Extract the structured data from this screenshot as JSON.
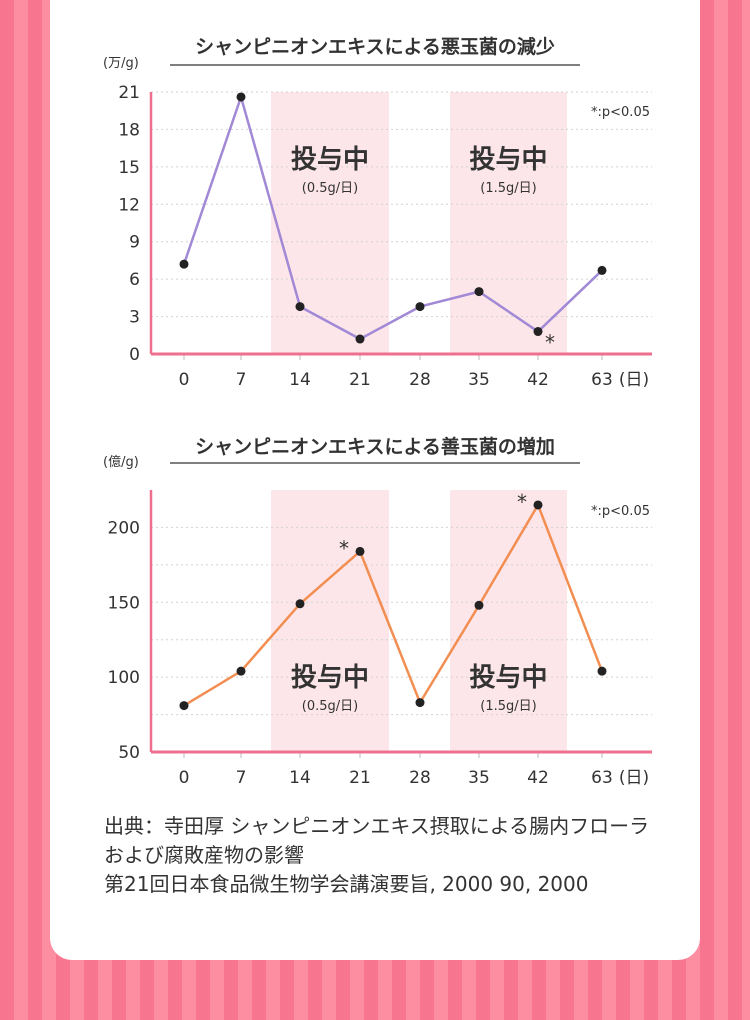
{
  "colors": {
    "accent": "#ef6f8f",
    "band": "#fde6ea",
    "line1": "#a189d6",
    "line2": "#f28e52",
    "point": "#222222"
  },
  "chart_data": [
    {
      "type": "line",
      "title": "シャンピニオンエキスによる悪玉菌の減少",
      "unit_label": "(万/g)",
      "x_unit": "(日)",
      "categories": [
        "0",
        "7",
        "14",
        "21",
        "28",
        "35",
        "42",
        "63"
      ],
      "series": [
        {
          "values": [
            7.2,
            20.6,
            3.8,
            1.2,
            3.8,
            5.0,
            1.8,
            6.7
          ]
        }
      ],
      "ylim": [
        0,
        21
      ],
      "yticks": [
        0,
        3,
        6,
        9,
        12,
        15,
        18,
        21
      ],
      "grid": true,
      "note": "*:p<0.05",
      "bands": [
        {
          "from_index": 2,
          "to_index": 3,
          "label": "投与中",
          "sublabel": "(0.5g/日)"
        },
        {
          "from_index": 5,
          "to_index": 6,
          "label": "投与中",
          "sublabel": "(1.5g/日)"
        }
      ],
      "significant_indices": [
        6
      ],
      "label_valign": "top"
    },
    {
      "type": "line",
      "title": "シャンピニオンエキスによる善玉菌の増加",
      "unit_label": "(億/g)",
      "x_unit": "(日)",
      "categories": [
        "0",
        "7",
        "14",
        "21",
        "28",
        "35",
        "42",
        "63"
      ],
      "series": [
        {
          "values": [
            81,
            104,
            149,
            184,
            83,
            148,
            215,
            104
          ]
        }
      ],
      "ylim": [
        50,
        225
      ],
      "yticks": [
        50,
        100,
        150,
        200
      ],
      "grid": true,
      "note": "*:p<0.05",
      "bands": [
        {
          "from_index": 2,
          "to_index": 3,
          "label": "投与中",
          "sublabel": "(0.5g/日)"
        },
        {
          "from_index": 5,
          "to_index": 6,
          "label": "投与中",
          "sublabel": "(1.5g/日)"
        }
      ],
      "significant_indices": [
        3,
        6
      ],
      "label_valign": "bottom"
    }
  ],
  "source": {
    "line1": "出典：寺田厚 シャンピニオンエキス摂取による腸内フローラ",
    "line2": "および腐敗産物の影響",
    "line3": "第21回日本食品微生物学会講演要旨, 2000 90, 2000"
  }
}
